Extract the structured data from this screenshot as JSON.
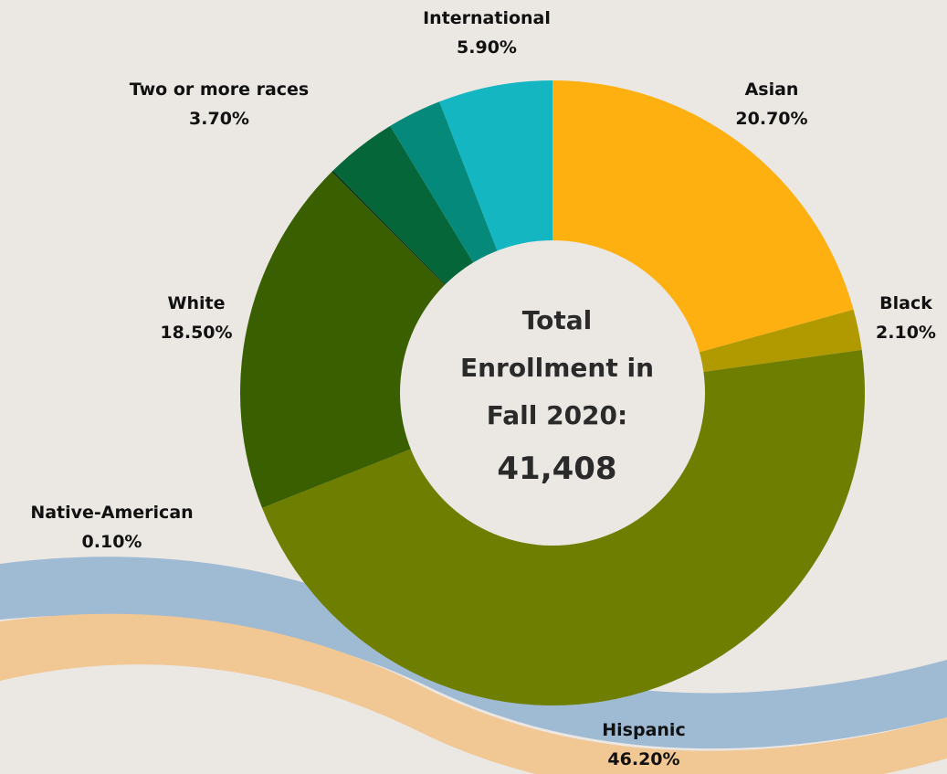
{
  "chart_data": {
    "type": "pie",
    "variant": "donut",
    "center_label": {
      "line1": "Total",
      "line2": "Enrollment in",
      "line3": "Fall 2020:",
      "value": "41,408"
    },
    "slices": [
      {
        "name": "Asian",
        "label": "Asian",
        "value": 20.7,
        "value_label": "20.70%",
        "color": "#fdb00f"
      },
      {
        "name": "Black",
        "label": "Black",
        "value": 2.1,
        "value_label": "2.10%",
        "color": "#b09a00"
      },
      {
        "name": "Hispanic",
        "label": "Hispanic",
        "value": 46.2,
        "value_label": "46.20%",
        "color": "#6e7e00"
      },
      {
        "name": "White",
        "label": "White",
        "value": 18.5,
        "value_label": "18.50%",
        "color": "#3a5f00"
      },
      {
        "name": "Native-American",
        "label": "Native-American",
        "value": 0.1,
        "value_label": "0.10%",
        "color": "#0a3a14"
      },
      {
        "name": "Two or more races",
        "label": "Two or more races",
        "value": 3.7,
        "value_label": "3.70%",
        "color": "#05663a"
      },
      {
        "name": "Unlabeled",
        "label": "",
        "value": 2.8,
        "value_label": "",
        "color": "#05897a"
      },
      {
        "name": "International",
        "label": "International",
        "value": 5.9,
        "value_label": "5.90%",
        "color": "#14b6c1"
      }
    ],
    "decor_colors": {
      "blue_wave": "#9fbad3",
      "orange_wave": "#f1c794",
      "background": "#ebe7e3"
    }
  }
}
